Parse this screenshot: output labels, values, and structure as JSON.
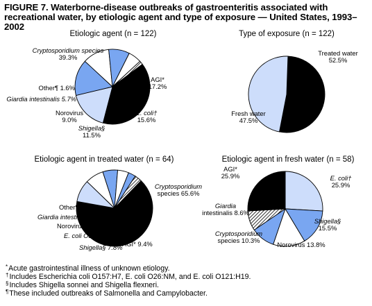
{
  "figure": {
    "title_line1": "FIGURE 7. Waterborne-disease outbreaks of gastroenteritis associated with",
    "title_line2": "recreational water, by etiologic agent and type of exposure — United States, 1993–2002"
  },
  "colors": {
    "black": "#000000",
    "light_blue": "#cdddfb",
    "medium_blue": "#79a6f1",
    "white": "#ffffff",
    "outline": "#000000"
  },
  "chart_data": [
    {
      "type": "pie",
      "title": "Etiologic agent (n = 122)",
      "slices": [
        {
          "label": "Cryptosporidium species",
          "value": 39.3,
          "fill": "black"
        },
        {
          "label": "AGI*",
          "value": 17.2,
          "fill": "light_blue"
        },
        {
          "label": "E. coli†",
          "value": 15.6,
          "fill": "medium_blue"
        },
        {
          "label": "Shigella§",
          "value": 11.5,
          "fill": "white"
        },
        {
          "label": "Norovirus",
          "value": 9.0,
          "fill": "medium_blue"
        },
        {
          "label": "Giardia intestinalis",
          "value": 5.7,
          "fill": "white"
        },
        {
          "label": "Other¶",
          "value": 1.6,
          "fill": "hatch"
        }
      ]
    },
    {
      "type": "pie",
      "title": "Type of exposure (n = 122)",
      "slices": [
        {
          "label": "Treated water",
          "value": 52.5,
          "fill": "black"
        },
        {
          "label": "Fresh water",
          "value": 47.5,
          "fill": "light_blue"
        }
      ]
    },
    {
      "type": "pie",
      "title": "Etiologic agent in treated water (n = 64)",
      "slices": [
        {
          "label": "Cryptosporidium species",
          "value": 65.6,
          "fill": "black"
        },
        {
          "label": "AGI*",
          "value": 9.4,
          "fill": "light_blue"
        },
        {
          "label": "Shigella§",
          "value": 7.8,
          "fill": "white"
        },
        {
          "label": "E. coli O157:H7",
          "value": 6.3,
          "fill": "medium_blue"
        },
        {
          "label": "Norovirus",
          "value": 4.7,
          "fill": "white"
        },
        {
          "label": "Giardia intestinalis",
          "value": 3.1,
          "fill": "medium_blue"
        },
        {
          "label": "Other¶",
          "value": 3.1,
          "fill": "hatch"
        }
      ]
    },
    {
      "type": "pie",
      "title": "Etiologic agent in fresh water (n = 58)",
      "slices": [
        {
          "label": "E. coli†",
          "value": 25.9,
          "fill": "light_blue"
        },
        {
          "label": "Shigella§",
          "value": 15.5,
          "fill": "medium_blue"
        },
        {
          "label": "Norovirus",
          "value": 13.8,
          "fill": "white"
        },
        {
          "label": "Cryptosporidium species",
          "value": 10.3,
          "fill": "medium_blue"
        },
        {
          "label": "Giardia intestinalis",
          "value": 8.6,
          "fill": "hatch"
        },
        {
          "label": "AGI*",
          "value": 25.9,
          "fill": "black"
        }
      ]
    }
  ],
  "footnotes": [
    {
      "symbol": "*",
      "text": "Acute gastrointestinal illness of unknown etiology."
    },
    {
      "symbol": "†",
      "text": "Includes Escherichia coli O157:H7, E. coli O26:NM, and E. coli O121:H19."
    },
    {
      "symbol": "§",
      "text": "Includes Shigella sonnei and Shigella flexneri."
    },
    {
      "symbol": "¶",
      "text": "These included outbreaks of Salmonella and Campylobacter."
    }
  ]
}
